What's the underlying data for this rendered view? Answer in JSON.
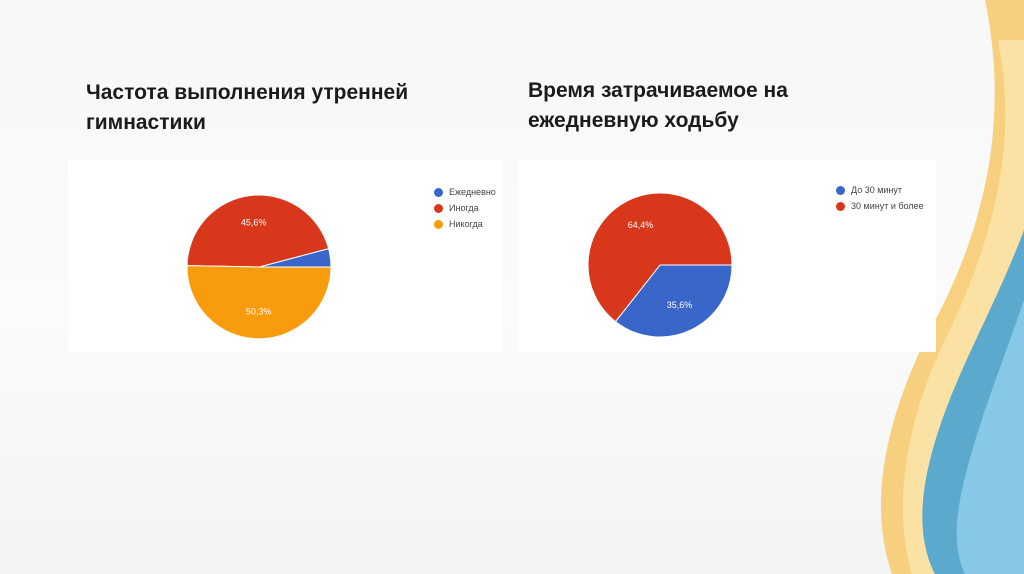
{
  "slide": {
    "accent_colors": [
      "#f4c25a",
      "#f9dc9a",
      "#3f9fd6",
      "#8ccbea"
    ]
  },
  "chart_data": [
    {
      "type": "pie",
      "title": "Частота выполнения утренней гимнастики",
      "legend_position": "right",
      "slices": [
        {
          "label": "Ежедневно",
          "value": 4.1,
          "color": "#3a66c9",
          "data_label": ""
        },
        {
          "label": "Иногда",
          "value": 45.6,
          "color": "#d9371c",
          "data_label": "45,6%"
        },
        {
          "label": "Никогда",
          "value": 50.3,
          "color": "#f89c0e",
          "data_label": "50,3%"
        }
      ]
    },
    {
      "type": "pie",
      "title": "Время затрачиваемое на ежедневную ходьбу",
      "legend_position": "right",
      "slices": [
        {
          "label": "До 30 минут",
          "value": 35.6,
          "color": "#3a66c9",
          "data_label": "35,6%"
        },
        {
          "label": "30 минут и более",
          "value": 64.4,
          "color": "#d9371c",
          "data_label": "64,4%"
        }
      ]
    }
  ]
}
